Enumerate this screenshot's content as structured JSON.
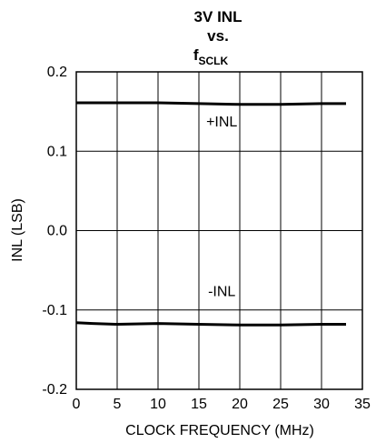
{
  "chart_data": {
    "type": "line",
    "title_lines": [
      "3V INL",
      "vs."
    ],
    "title_f": "f",
    "title_sub": "SCLK",
    "xlabel": "CLOCK FREQUENCY (MHz)",
    "ylabel": "INL (LSB)",
    "xlim": [
      0,
      35
    ],
    "ylim": [
      -0.2,
      0.2
    ],
    "x_ticks": [
      0,
      5,
      10,
      15,
      20,
      25,
      30,
      35
    ],
    "x_tick_labels": [
      "0",
      "5",
      "10",
      "15",
      "20",
      "25",
      "30",
      "35"
    ],
    "y_ticks": [
      0.2,
      0.1,
      0.0,
      -0.1,
      -0.2
    ],
    "y_tick_labels": [
      "0.2",
      "0.1",
      "0.0",
      "-0.1",
      "-0.2"
    ],
    "grid": true,
    "series": [
      {
        "name": "+INL",
        "x": [
          0,
          5,
          10,
          15,
          20,
          25,
          30,
          33
        ],
        "y": [
          0.161,
          0.161,
          0.161,
          0.16,
          0.159,
          0.159,
          0.16,
          0.16
        ]
      },
      {
        "name": "-INL",
        "x": [
          0,
          2,
          5,
          10,
          15,
          20,
          25,
          30,
          33
        ],
        "y": [
          -0.116,
          -0.117,
          -0.118,
          -0.117,
          -0.118,
          -0.119,
          -0.119,
          -0.118,
          -0.118
        ]
      }
    ],
    "annotations": [
      {
        "text": "+INL",
        "x": 17.8,
        "y": 0.137
      },
      {
        "text": "-INL",
        "x": 17.8,
        "y": -0.077
      }
    ]
  }
}
